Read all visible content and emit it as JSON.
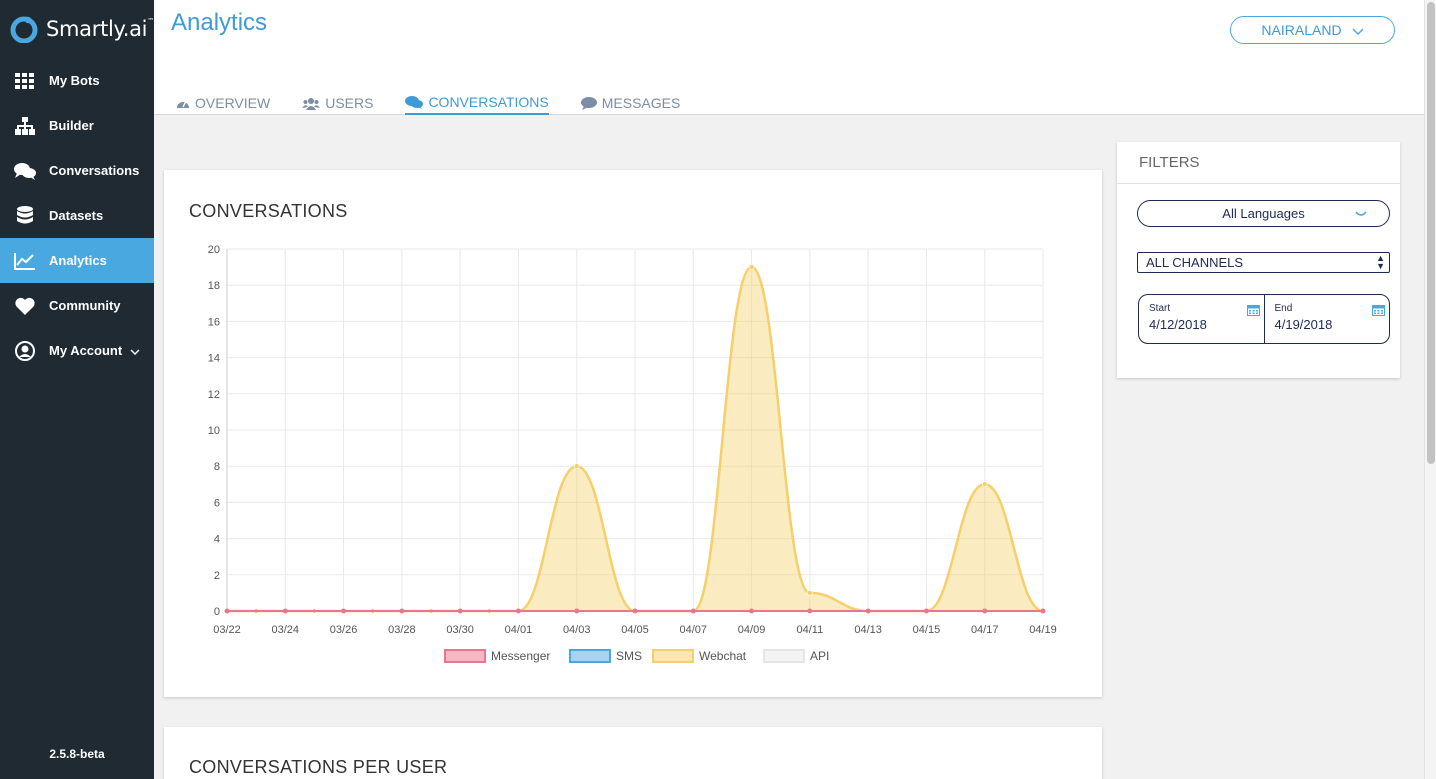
{
  "brand": {
    "name": "Smartly.ai",
    "trademark": "™"
  },
  "sidebar": {
    "items": [
      {
        "label": "My Bots",
        "icon": "grid-icon"
      },
      {
        "label": "Builder",
        "icon": "sitemap-icon"
      },
      {
        "label": "Conversations",
        "icon": "chat-bubbles-icon"
      },
      {
        "label": "Datasets",
        "icon": "database-icon"
      },
      {
        "label": "Analytics",
        "icon": "line-chart-icon",
        "active": true
      },
      {
        "label": "Community",
        "icon": "heart-icon"
      },
      {
        "label": "My Account",
        "icon": "user-circle-icon"
      }
    ],
    "version": "2.5.8-beta"
  },
  "header": {
    "title": "Analytics",
    "bot_selector": "NAIRALAND",
    "tabs": [
      {
        "label": "OVERVIEW",
        "icon": "dashboard-icon"
      },
      {
        "label": "USERS",
        "icon": "users-icon"
      },
      {
        "label": "CONVERSATIONS",
        "icon": "chat-bubbles-icon",
        "active": true
      },
      {
        "label": "MESSAGES",
        "icon": "speech-bubble-icon"
      }
    ]
  },
  "filters": {
    "title": "FILTERS",
    "language": "All Languages",
    "channel": "ALL CHANNELS",
    "start_label": "Start",
    "start_value": "4/12/2018",
    "end_label": "End",
    "end_value": "4/19/2018"
  },
  "second_card": {
    "title": "CONVERSATIONS PER USER"
  },
  "colors": {
    "sidebar_bg": "#1f2a33",
    "accent": "#4aa8e0",
    "messenger": "#e8768e",
    "sms": "#4aa8e0",
    "webchat": "#f6cf6b",
    "api": "#e4e4e4"
  },
  "chart_data": {
    "type": "area",
    "title": "CONVERSATIONS",
    "xlabel": "",
    "ylabel": "",
    "ylim": [
      0,
      20
    ],
    "yticks": [
      0,
      2,
      4,
      6,
      8,
      10,
      12,
      14,
      16,
      18,
      20
    ],
    "x": [
      "03/22",
      "03/23",
      "03/24",
      "03/25",
      "03/26",
      "03/27",
      "03/28",
      "03/29",
      "03/30",
      "03/31",
      "04/01",
      "04/02",
      "04/03",
      "04/04",
      "04/05",
      "04/06",
      "04/07",
      "04/08",
      "04/09",
      "04/10",
      "04/11",
      "04/12",
      "04/13",
      "04/14",
      "04/15",
      "04/16",
      "04/17",
      "04/18",
      "04/19"
    ],
    "xtick_labels": [
      "03/22",
      "03/24",
      "03/26",
      "03/28",
      "03/30",
      "04/01",
      "04/03",
      "04/05",
      "04/07",
      "04/09",
      "04/11",
      "04/13",
      "04/15",
      "04/17",
      "04/19"
    ],
    "series": [
      {
        "name": "Messenger",
        "values": [
          0,
          0,
          0,
          0,
          0,
          0,
          0,
          0,
          0,
          0,
          0,
          0,
          0,
          0,
          0,
          0,
          0,
          0,
          0,
          0,
          0,
          0,
          0,
          0,
          0,
          0,
          0,
          0,
          0
        ]
      },
      {
        "name": "SMS",
        "values": [
          0,
          0,
          0,
          0,
          0,
          0,
          0,
          0,
          0,
          0,
          0,
          0,
          0,
          0,
          0,
          0,
          0,
          0,
          0,
          0,
          0,
          0,
          0,
          0,
          0,
          0,
          0,
          0,
          0
        ]
      },
      {
        "name": "Webchat",
        "values": [
          0,
          0,
          0,
          0,
          0,
          0,
          0,
          0,
          0,
          0,
          0,
          null,
          8,
          null,
          0,
          null,
          0,
          null,
          19,
          null,
          1,
          null,
          0,
          null,
          0,
          null,
          7,
          null,
          0
        ]
      },
      {
        "name": "API",
        "values": [
          0,
          0,
          0,
          0,
          0,
          0,
          0,
          0,
          0,
          0,
          0,
          0,
          0,
          0,
          0,
          0,
          0,
          0,
          0,
          0,
          0,
          0,
          0,
          0,
          0,
          0,
          0,
          0,
          0
        ]
      }
    ],
    "legend": [
      "Messenger",
      "SMS",
      "Webchat",
      "API"
    ],
    "legend_position": "bottom",
    "grid": true
  }
}
